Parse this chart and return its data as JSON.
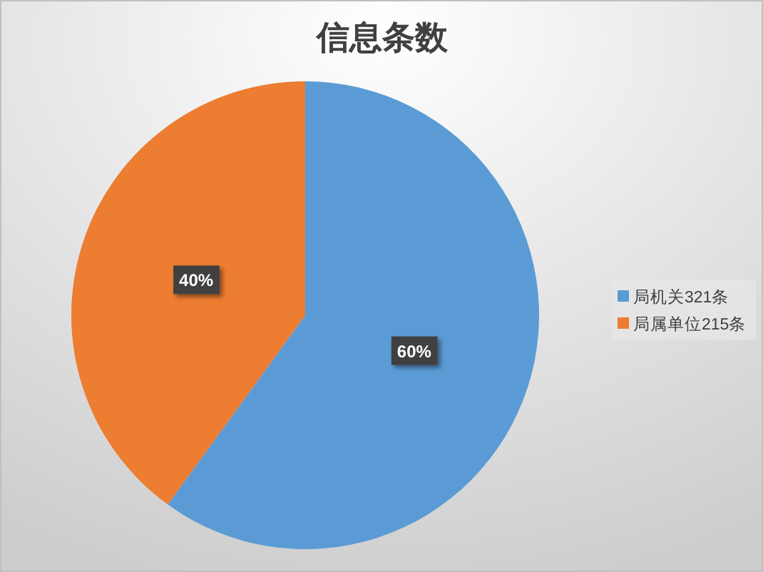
{
  "chart_data": {
    "type": "pie",
    "title": "信息条数",
    "categories": [
      "局机关321条",
      "局属单位215条"
    ],
    "values": [
      60,
      40
    ],
    "colors": [
      "#5b9bd5",
      "#ed7d31"
    ],
    "value_labels": [
      "60%",
      "40%"
    ],
    "legend": "right"
  }
}
